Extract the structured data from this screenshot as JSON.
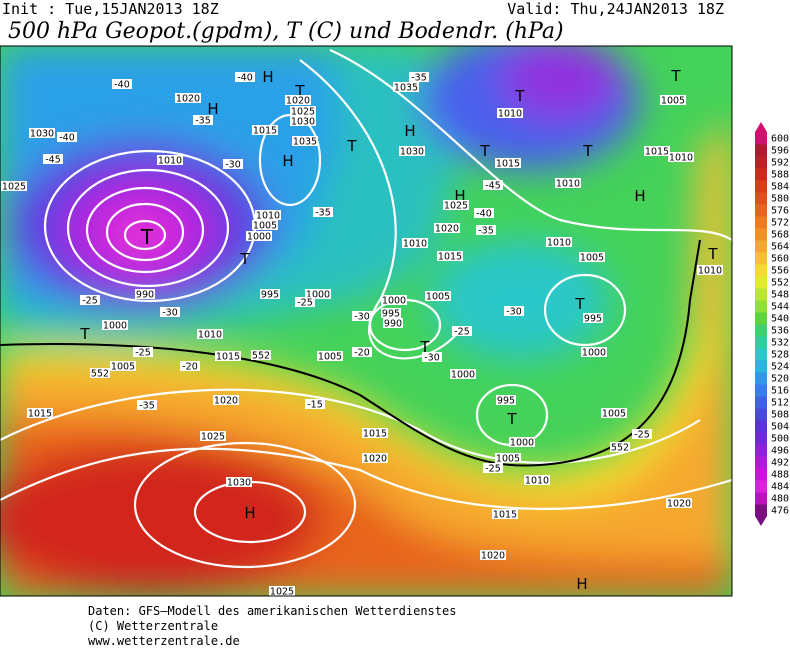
{
  "header": {
    "init": "Init : Tue,15JAN2013  18Z",
    "valid": "Valid: Thu,24JAN2013  18Z",
    "title": "500 hPa Geopot.(gpdm), T (C) und Bodendr. (hPa)"
  },
  "colorbar": {
    "ticks": [
      476,
      480,
      484,
      488,
      492,
      496,
      500,
      504,
      508,
      512,
      516,
      520,
      524,
      528,
      532,
      536,
      540,
      544,
      548,
      552,
      556,
      560,
      564,
      568,
      572,
      576,
      580,
      584,
      588,
      592,
      596,
      600
    ],
    "colors": [
      "#7a1080",
      "#c010c0",
      "#e020d8",
      "#d010e0",
      "#b018e0",
      "#9020e0",
      "#7028e0",
      "#5a30e0",
      "#4848e0",
      "#4060ec",
      "#3a7cf0",
      "#3298ec",
      "#2ab4e0",
      "#2ac8c8",
      "#2ad0a0",
      "#3cd070",
      "#5cd43a",
      "#8ee032",
      "#b8e82e",
      "#e0ec2a",
      "#f4dc2e",
      "#f6c030",
      "#f6a82e",
      "#f29028",
      "#ee7a22",
      "#e8641e",
      "#e2501a",
      "#dc3c14",
      "#d2281e",
      "#c01e28",
      "#b4152f",
      "#d0106f"
    ]
  },
  "map_labels": [
    "T",
    "H",
    "H",
    "H",
    "H",
    "H",
    "H",
    "H",
    "H",
    "T",
    "T",
    "T",
    "T",
    "T",
    "T",
    "T",
    "T",
    "T",
    "T",
    "T",
    "T",
    "1020",
    "1020",
    "1025",
    "1030",
    "1035",
    "1015",
    "1010",
    "990",
    "995",
    "1000",
    "1000",
    "1010",
    "1015",
    "1005",
    "1020",
    "1025",
    "1030",
    "1015",
    "1015",
    "1020",
    "1025",
    "1035",
    "1010",
    "1030",
    "1015",
    "1010",
    "1005",
    "1015",
    "1010",
    "1010",
    "1015",
    "1020",
    "1025",
    "1010",
    "1005",
    "1010",
    "995",
    "1000",
    "1000",
    "995",
    "990",
    "1005",
    "1005",
    "1000",
    "995",
    "1000",
    "1005",
    "1010",
    "1005",
    "1015",
    "1020",
    "1020",
    "1010",
    "1005",
    "1000",
    "1025",
    "1030",
    "-40",
    "-40",
    "-35",
    "-40",
    "-45",
    "-30",
    "-35",
    "-35",
    "-45",
    "-40",
    "-35",
    "-25",
    "-30",
    "-25",
    "-25",
    "-20",
    "-35",
    "-15",
    "-30",
    "-25",
    "-30",
    "-20",
    "-30",
    "-25",
    "-25",
    "552",
    "552",
    "552"
  ],
  "footer": [
    "Daten: GFS—Modell des amerikanischen Wetterdienstes",
    "(C) Wetterzentrale",
    "www.wetterzentrale.de"
  ]
}
